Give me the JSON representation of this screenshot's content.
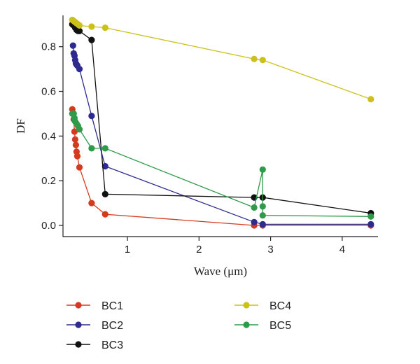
{
  "chart_data": {
    "type": "line",
    "title": "",
    "xlabel": "Wave (μm)",
    "ylabel": "DF",
    "xlim": [
      0.1,
      4.5
    ],
    "ylim": [
      -0.05,
      0.94
    ],
    "xticks": [
      1,
      2,
      3,
      4
    ],
    "yticks": [
      0.0,
      0.2,
      0.4,
      0.6,
      0.8
    ],
    "ytick_labels": [
      "0.0",
      "0.2",
      "0.4",
      "0.6",
      "0.8"
    ],
    "grid": false,
    "legend_position": "bottom",
    "series": [
      {
        "name": "BC1",
        "color": "#d63a1e",
        "points": [
          [
            0.23,
            0.52
          ],
          [
            0.24,
            0.5
          ],
          [
            0.25,
            0.475
          ],
          [
            0.26,
            0.42
          ],
          [
            0.27,
            0.385
          ],
          [
            0.28,
            0.36
          ],
          [
            0.29,
            0.33
          ],
          [
            0.3,
            0.31
          ],
          [
            0.33,
            0.26
          ],
          [
            0.5,
            0.1
          ],
          [
            0.69,
            0.05
          ],
          [
            2.77,
            0.0
          ],
          [
            2.89,
            0.0
          ],
          [
            4.4,
            0.0
          ]
        ]
      },
      {
        "name": "BC2",
        "color": "#2e2b8f",
        "points": [
          [
            0.24,
            0.805
          ],
          [
            0.25,
            0.77
          ],
          [
            0.26,
            0.76
          ],
          [
            0.27,
            0.74
          ],
          [
            0.28,
            0.725
          ],
          [
            0.29,
            0.72
          ],
          [
            0.3,
            0.715
          ],
          [
            0.33,
            0.7
          ],
          [
            0.5,
            0.49
          ],
          [
            0.69,
            0.265
          ],
          [
            2.77,
            0.015
          ],
          [
            2.89,
            0.005
          ],
          [
            4.4,
            0.005
          ]
        ]
      },
      {
        "name": "BC3",
        "color": "#111111",
        "points": [
          [
            0.23,
            0.9
          ],
          [
            0.25,
            0.895
          ],
          [
            0.27,
            0.885
          ],
          [
            0.29,
            0.875
          ],
          [
            0.31,
            0.87
          ],
          [
            0.33,
            0.87
          ],
          [
            0.5,
            0.83
          ],
          [
            0.69,
            0.14
          ],
          [
            2.77,
            0.125
          ],
          [
            2.89,
            0.125
          ],
          [
            4.4,
            0.055
          ]
        ]
      },
      {
        "name": "BC4",
        "color": "#ccc11a",
        "points": [
          [
            0.23,
            0.92
          ],
          [
            0.25,
            0.915
          ],
          [
            0.27,
            0.91
          ],
          [
            0.29,
            0.905
          ],
          [
            0.31,
            0.9
          ],
          [
            0.33,
            0.895
          ],
          [
            0.5,
            0.89
          ],
          [
            0.69,
            0.885
          ],
          [
            2.77,
            0.745
          ],
          [
            2.89,
            0.74
          ],
          [
            4.4,
            0.565
          ]
        ]
      },
      {
        "name": "BC5",
        "color": "#2e9a4a",
        "points": [
          [
            0.23,
            0.5
          ],
          [
            0.25,
            0.5
          ],
          [
            0.26,
            0.48
          ],
          [
            0.27,
            0.465
          ],
          [
            0.29,
            0.455
          ],
          [
            0.31,
            0.445
          ],
          [
            0.33,
            0.43
          ],
          [
            0.5,
            0.345
          ],
          [
            0.69,
            0.345
          ],
          [
            2.77,
            0.08
          ],
          [
            2.89,
            0.25
          ],
          [
            2.89,
            0.085
          ],
          [
            2.89,
            0.045
          ],
          [
            4.4,
            0.04
          ]
        ]
      }
    ]
  }
}
